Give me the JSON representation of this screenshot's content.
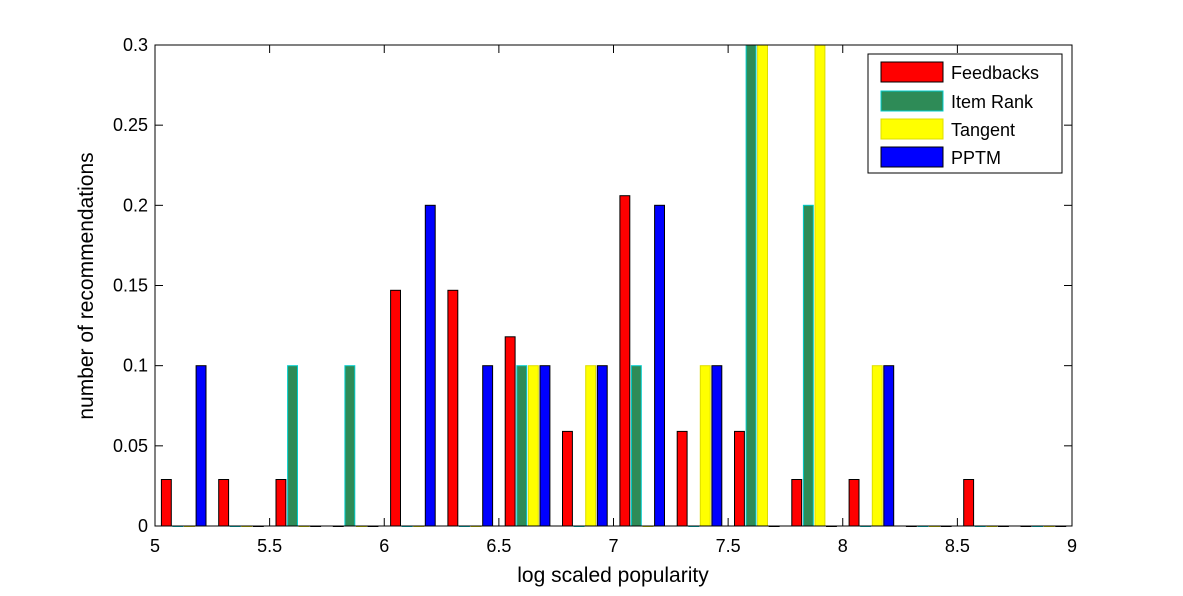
{
  "chart_data": {
    "type": "bar",
    "title": "",
    "xlabel": "log scaled popularity",
    "ylabel": "number of recommendations",
    "xlim": [
      5,
      9
    ],
    "ylim": [
      0,
      0.3
    ],
    "x_ticks": [
      "5",
      "5.5",
      "6",
      "6.5",
      "7",
      "7.5",
      "8",
      "8.5",
      "9"
    ],
    "y_ticks": [
      "0",
      "0.05",
      "0.1",
      "0.15",
      "0.2",
      "0.25",
      "0.3"
    ],
    "grid": false,
    "legend_position": "top-right",
    "bin_width": 0.25,
    "bin_centers": [
      5.125,
      5.375,
      5.625,
      5.875,
      6.125,
      6.375,
      6.625,
      6.875,
      7.125,
      7.375,
      7.625,
      7.875,
      8.125,
      8.375,
      8.625,
      8.875
    ],
    "series": [
      {
        "name": "Feedbacks",
        "color": "#ff0000",
        "edge": "#000000",
        "values": [
          0.029,
          0.029,
          0.029,
          0,
          0.147,
          0.147,
          0.118,
          0.059,
          0.206,
          0.059,
          0.059,
          0.029,
          0.029,
          0,
          0.029,
          0
        ]
      },
      {
        "name": "Item Rank",
        "color": "#2e8b57",
        "edge": "#00cccc",
        "values": [
          0,
          0,
          0.1,
          0.1,
          0,
          0,
          0.1,
          0,
          0.1,
          0,
          0.3,
          0.2,
          0,
          0,
          0,
          0
        ]
      },
      {
        "name": "Tangent",
        "color": "#ffff00",
        "edge": "#dddd00",
        "values": [
          0,
          0,
          0,
          0,
          0,
          0,
          0.1,
          0.1,
          0,
          0.1,
          0.3,
          0.3,
          0.1,
          0,
          0,
          0
        ]
      },
      {
        "name": "PPTM",
        "color": "#0000ff",
        "edge": "#000000",
        "values": [
          0.1,
          0,
          0,
          0,
          0.2,
          0.1,
          0.1,
          0.1,
          0.2,
          0.1,
          0,
          0,
          0.1,
          0,
          0,
          0
        ]
      }
    ]
  }
}
